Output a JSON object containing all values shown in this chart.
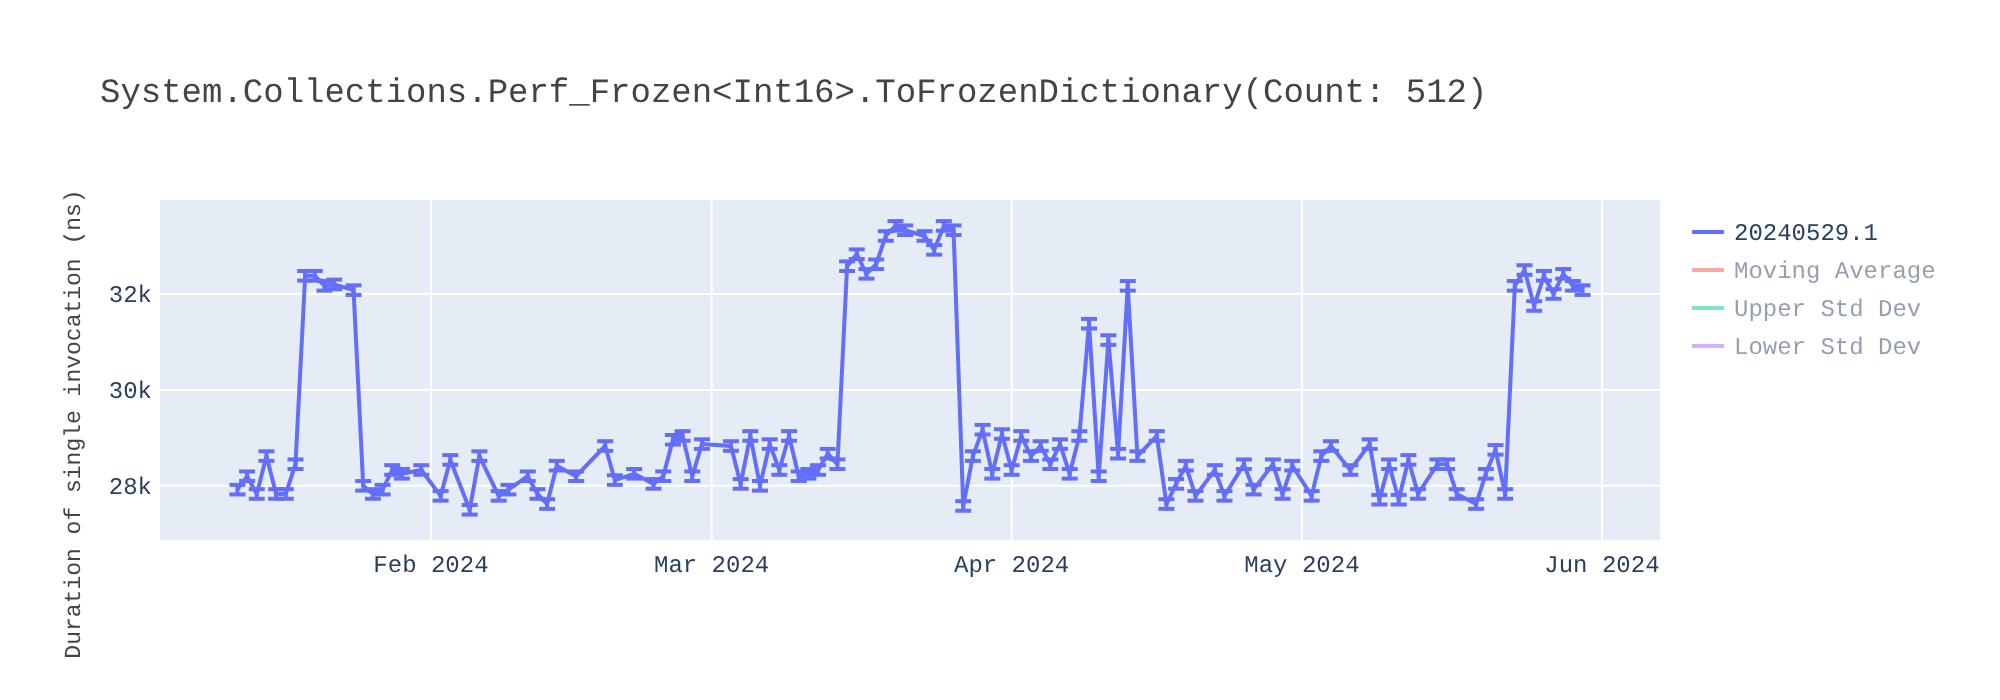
{
  "chart_data": {
    "type": "line",
    "title": "System.Collections.Perf_Frozen<Int16>.ToFrozenDictionary(Count: 512)",
    "ylabel": "Duration of single invocation (ns)",
    "x": [
      "2024-01-12",
      "2024-01-13",
      "2024-01-14",
      "2024-01-15",
      "2024-01-16",
      "2024-01-17",
      "2024-01-18",
      "2024-01-19",
      "2024-01-20",
      "2024-01-21",
      "2024-01-22",
      "2024-01-24",
      "2024-01-25",
      "2024-01-26",
      "2024-01-27",
      "2024-01-28",
      "2024-01-29",
      "2024-01-31",
      "2024-02-02",
      "2024-02-03",
      "2024-02-05",
      "2024-02-06",
      "2024-02-08",
      "2024-02-09",
      "2024-02-11",
      "2024-02-12",
      "2024-02-13",
      "2024-02-14",
      "2024-02-16",
      "2024-02-19",
      "2024-02-20",
      "2024-02-22",
      "2024-02-24",
      "2024-02-25",
      "2024-02-26",
      "2024-02-27",
      "2024-02-28",
      "2024-02-29",
      "2024-03-03",
      "2024-03-04",
      "2024-03-05",
      "2024-03-06",
      "2024-03-07",
      "2024-03-08",
      "2024-03-09",
      "2024-03-10",
      "2024-03-11",
      "2024-03-12",
      "2024-03-13",
      "2024-03-14",
      "2024-03-15",
      "2024-03-16",
      "2024-03-17",
      "2024-03-18",
      "2024-03-19",
      "2024-03-20",
      "2024-03-21",
      "2024-03-23",
      "2024-03-24",
      "2024-03-25",
      "2024-03-26",
      "2024-03-27",
      "2024-03-28",
      "2024-03-29",
      "2024-03-30",
      "2024-03-31",
      "2024-04-01",
      "2024-04-02",
      "2024-04-03",
      "2024-04-04",
      "2024-04-05",
      "2024-04-06",
      "2024-04-07",
      "2024-04-08",
      "2024-04-09",
      "2024-04-10",
      "2024-04-11",
      "2024-04-12",
      "2024-04-13",
      "2024-04-14",
      "2024-04-16",
      "2024-04-17",
      "2024-04-18",
      "2024-04-19",
      "2024-04-20",
      "2024-04-22",
      "2024-04-23",
      "2024-04-25",
      "2024-04-26",
      "2024-04-28",
      "2024-04-29",
      "2024-04-30",
      "2024-05-02",
      "2024-05-03",
      "2024-05-04",
      "2024-05-06",
      "2024-05-08",
      "2024-05-09",
      "2024-05-10",
      "2024-05-11",
      "2024-05-12",
      "2024-05-13",
      "2024-05-15",
      "2024-05-16",
      "2024-05-17",
      "2024-05-19",
      "2024-05-20",
      "2024-05-21",
      "2024-05-22",
      "2024-05-23",
      "2024-05-24",
      "2024-05-25",
      "2024-05-26",
      "2024-05-27",
      "2024-05-28",
      "2024-05-29",
      "2024-05-30"
    ],
    "series": [
      {
        "name": "20240529.1",
        "color": "#636efa",
        "values": [
          27920,
          28200,
          27830,
          28620,
          27830,
          27830,
          28450,
          32380,
          32380,
          32170,
          32200,
          32080,
          28000,
          27830,
          27920,
          28330,
          28250,
          28330,
          27790,
          28540,
          27500,
          28620,
          27790,
          27920,
          28200,
          27830,
          27620,
          28420,
          28200,
          28830,
          28120,
          28250,
          28040,
          28200,
          28960,
          29040,
          28200,
          28870,
          28830,
          28040,
          29040,
          28000,
          28870,
          28330,
          29040,
          28200,
          28250,
          28330,
          28670,
          28450,
          32580,
          32830,
          32420,
          32620,
          33210,
          33420,
          33330,
          33210,
          32920,
          33420,
          33330,
          27580,
          28620,
          29170,
          28250,
          29080,
          28330,
          29040,
          28620,
          28830,
          28450,
          28870,
          28250,
          29040,
          31380,
          28200,
          31040,
          28670,
          32170,
          28620,
          29040,
          27620,
          28040,
          28420,
          27790,
          28330,
          27790,
          28450,
          27920,
          28450,
          27830,
          28420,
          27790,
          28620,
          28830,
          28330,
          28870,
          27710,
          28450,
          27710,
          28540,
          27830,
          28450,
          28450,
          27830,
          27620,
          28250,
          28750,
          27830,
          32170,
          32500,
          31750,
          32380,
          32000,
          32420,
          32170,
          32080
        ],
        "errors": [
          100,
          100,
          100,
          100,
          100,
          100,
          100,
          100,
          100,
          100,
          100,
          100,
          100,
          100,
          100,
          100,
          100,
          100,
          100,
          100,
          100,
          100,
          100,
          100,
          100,
          100,
          100,
          100,
          100,
          100,
          100,
          100,
          100,
          100,
          100,
          100,
          100,
          100,
          100,
          100,
          100,
          100,
          100,
          100,
          100,
          100,
          100,
          100,
          100,
          100,
          100,
          100,
          100,
          100,
          100,
          100,
          100,
          100,
          100,
          100,
          100,
          100,
          100,
          100,
          100,
          100,
          100,
          100,
          100,
          100,
          100,
          100,
          100,
          100,
          100,
          100,
          100,
          100,
          100,
          100,
          100,
          100,
          100,
          100,
          100,
          100,
          100,
          100,
          100,
          100,
          100,
          100,
          100,
          100,
          100,
          100,
          100,
          100,
          100,
          100,
          100,
          100,
          100,
          100,
          100,
          100,
          100,
          100,
          100,
          100,
          100,
          100,
          100,
          100,
          100,
          100,
          100
        ]
      },
      {
        "name": "Moving Average",
        "color": "#ef553b",
        "values": [
          null,
          null,
          null,
          null,
          null,
          null,
          null,
          null,
          null,
          null,
          null,
          null,
          null,
          null,
          null,
          null,
          null,
          null,
          null,
          null,
          null,
          null,
          null,
          null,
          null,
          null,
          null,
          null,
          null,
          null,
          null,
          null,
          null,
          null,
          null,
          null,
          null,
          null,
          null,
          null,
          null,
          null,
          null,
          null,
          null,
          null,
          null,
          null,
          null,
          null,
          null,
          null,
          null,
          null,
          null,
          null,
          null,
          null,
          null,
          null,
          null,
          null,
          null,
          null,
          null,
          null,
          null,
          null,
          null,
          null,
          null,
          null,
          null,
          null,
          null,
          null,
          null,
          null,
          null,
          null,
          null,
          null,
          null,
          null,
          null,
          null,
          null,
          null,
          null,
          null,
          null,
          null,
          null,
          null,
          null,
          null,
          null,
          null,
          null,
          null,
          null,
          null,
          null,
          null,
          null,
          null,
          null,
          null,
          null,
          null,
          null,
          null,
          null,
          null,
          null,
          null,
          null
        ]
      },
      {
        "name": "Upper Std Dev",
        "color": "#00cc96",
        "values": [
          null,
          null,
          null,
          null,
          null,
          null,
          null,
          null,
          null,
          null,
          null,
          null,
          null,
          null,
          null,
          null,
          null,
          null,
          null,
          null,
          null,
          null,
          null,
          null,
          null,
          null,
          null,
          null,
          null,
          null,
          null,
          null,
          null,
          null,
          null,
          null,
          null,
          null,
          null,
          null,
          null,
          null,
          null,
          null,
          null,
          null,
          null,
          null,
          null,
          null,
          null,
          null,
          null,
          null,
          null,
          null,
          null,
          null,
          null,
          null,
          null,
          null,
          null,
          null,
          null,
          null,
          null,
          null,
          null,
          null,
          null,
          null,
          null,
          null,
          null,
          null,
          null,
          null,
          null,
          null,
          null,
          null,
          null,
          null,
          null,
          null,
          null,
          null,
          null,
          null,
          null,
          null,
          null,
          null,
          null,
          null,
          null,
          null,
          null,
          null,
          null,
          null,
          null,
          null,
          null,
          null,
          null,
          null,
          null,
          null,
          null,
          null,
          null,
          null,
          null,
          null,
          null
        ]
      },
      {
        "name": "Lower Std Dev",
        "color": "#ab63fa",
        "values": [
          null,
          null,
          null,
          null,
          null,
          null,
          null,
          null,
          null,
          null,
          null,
          null,
          null,
          null,
          null,
          null,
          null,
          null,
          null,
          null,
          null,
          null,
          null,
          null,
          null,
          null,
          null,
          null,
          null,
          null,
          null,
          null,
          null,
          null,
          null,
          null,
          null,
          null,
          null,
          null,
          null,
          null,
          null,
          null,
          null,
          null,
          null,
          null,
          null,
          null,
          null,
          null,
          null,
          null,
          null,
          null,
          null,
          null,
          null,
          null,
          null,
          null,
          null,
          null,
          null,
          null,
          null,
          null,
          null,
          null,
          null,
          null,
          null,
          null,
          null,
          null,
          null,
          null,
          null,
          null,
          null,
          null,
          null,
          null,
          null,
          null,
          null,
          null,
          null,
          null,
          null,
          null,
          null,
          null,
          null,
          null,
          null,
          null,
          null,
          null,
          null,
          null,
          null,
          null,
          null,
          null,
          null,
          null,
          null,
          null,
          null,
          null,
          null,
          null,
          null,
          null,
          null
        ]
      }
    ],
    "xlim": [
      "2024-01-04",
      "2024-06-07"
    ],
    "xticks": [
      {
        "value": "2024-02-01",
        "label": "Feb 2024"
      },
      {
        "value": "2024-03-01",
        "label": "Mar 2024"
      },
      {
        "value": "2024-04-01",
        "label": "Apr 2024"
      },
      {
        "value": "2024-05-01",
        "label": "May 2024"
      },
      {
        "value": "2024-06-01",
        "label": "Jun 2024"
      }
    ],
    "ylim": [
      26870,
      33960
    ],
    "yticks": [
      {
        "value": 28000,
        "label": "28k"
      },
      {
        "value": 30000,
        "label": "30k"
      },
      {
        "value": 32000,
        "label": "32k"
      }
    ],
    "grid": true,
    "legend": "right",
    "marker": "none",
    "line_style": "solid"
  }
}
